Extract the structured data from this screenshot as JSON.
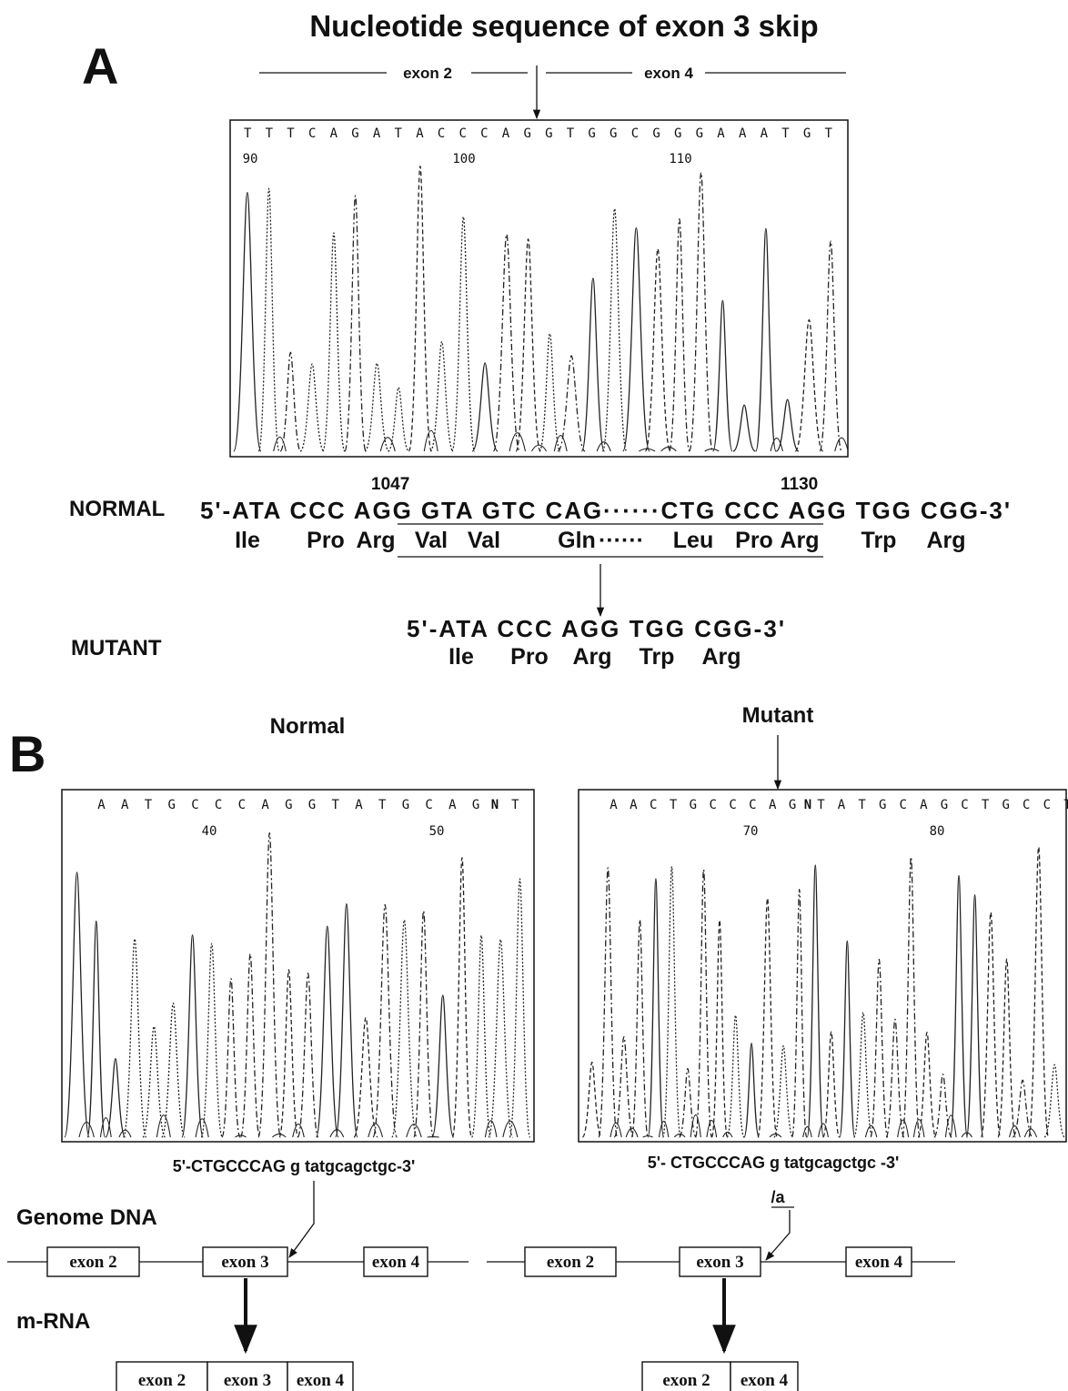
{
  "title": "Nucleotide sequence of exon 3 skip",
  "panel_a": {
    "label": "A",
    "exon_left": "exon 2",
    "exon_right": "exon 4",
    "bases": "T T T C A G A T A C C C A G G T G G C G G G A A A T G T",
    "positions": [
      "90",
      "100",
      "110"
    ],
    "normal": {
      "label": "NORMAL",
      "pos_left": "1047",
      "pos_right": "1130",
      "dna": "5'-ATA CCC AGG GTA GTC CAG······CTG CCC AGG TGG CGG-3'",
      "protein": [
        "Ile",
        "Pro",
        "Arg",
        "Val",
        "Val",
        "Gln",
        "······",
        "Leu",
        "Pro",
        "Arg",
        "Trp",
        "Arg"
      ]
    },
    "mutant": {
      "label": "MUTANT",
      "dna": "5'-ATA CCC AGG TGG CGG-3'",
      "protein": [
        "Ile",
        "Pro",
        "Arg",
        "Trp",
        "Arg"
      ]
    }
  },
  "panel_b": {
    "label": "B",
    "normal": {
      "title": "Normal",
      "bases": [
        "A A T G C C C A G G T A T G C A G",
        "N",
        "T"
      ],
      "positions": [
        "40",
        "50"
      ],
      "sequence": "5'-CTGCCCAG g tatgcagctgc-3'"
    },
    "mutant": {
      "title": "Mutant",
      "bases": [
        "A A C T G C C C A G",
        "N",
        "T A T G C A G C T G C C T T"
      ],
      "positions": [
        "70",
        "80"
      ],
      "sequence": "5'- CTGCCCAG g tatgcagctgc -3'",
      "substitution": "/a"
    },
    "genome_label": "Genome DNA",
    "mrna_label": "m-RNA",
    "genome_normal": [
      "exon 2",
      "exon 3",
      "exon 4"
    ],
    "genome_mutant": [
      "exon 2",
      "exon 3",
      "exon 4"
    ],
    "mrna_normal": [
      "exon 2",
      "exon 3",
      "exon 4"
    ],
    "mrna_mutant": [
      "exon 2",
      "exon 4"
    ]
  }
}
